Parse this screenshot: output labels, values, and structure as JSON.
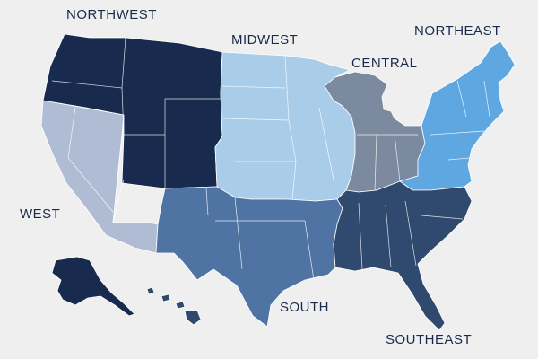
{
  "colors": {
    "background": "#efefef",
    "northwest": "#182b4f",
    "midwest": "#a9cde9",
    "central": "#7b8a9e",
    "northeast": "#5fa7e1",
    "west": "#b0bcd3",
    "south": "#4f74a3",
    "southeast": "#2f4a6e",
    "label": "#1b2a4a"
  },
  "regions": [
    {
      "id": "northwest",
      "label": "NORTHWEST"
    },
    {
      "id": "midwest",
      "label": "MIDWEST"
    },
    {
      "id": "central",
      "label": "CENTRAL"
    },
    {
      "id": "northeast",
      "label": "NORTHEAST"
    },
    {
      "id": "west",
      "label": "WEST"
    },
    {
      "id": "south",
      "label": "SOUTH"
    },
    {
      "id": "southeast",
      "label": "SOUTHEAST"
    }
  ]
}
